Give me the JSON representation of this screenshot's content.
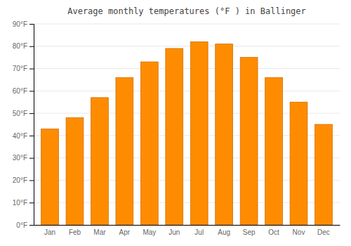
{
  "chart_data": {
    "type": "bar",
    "title": "Average monthly temperatures (°F ) in Ballinger",
    "categories": [
      "Jan",
      "Feb",
      "Mar",
      "Apr",
      "May",
      "Jun",
      "Jul",
      "Aug",
      "Sep",
      "Oct",
      "Nov",
      "Dec"
    ],
    "values": [
      43,
      48,
      57,
      66,
      73,
      79,
      82,
      81,
      75,
      66,
      55,
      45
    ],
    "color": "#FF8C00",
    "ylim": [
      0,
      90
    ],
    "yticks": [
      {
        "value": 0,
        "label": "0°F"
      },
      {
        "value": 10,
        "label": "10°F"
      },
      {
        "value": 20,
        "label": "20°F"
      },
      {
        "value": 30,
        "label": "30°F"
      },
      {
        "value": 40,
        "label": "40°F"
      },
      {
        "value": 50,
        "label": "50°F"
      },
      {
        "value": 60,
        "label": "60°F"
      },
      {
        "value": 70,
        "label": "70°F"
      },
      {
        "value": 80,
        "label": "80°F"
      },
      {
        "value": 90,
        "label": "90°F"
      }
    ],
    "grid": true
  }
}
